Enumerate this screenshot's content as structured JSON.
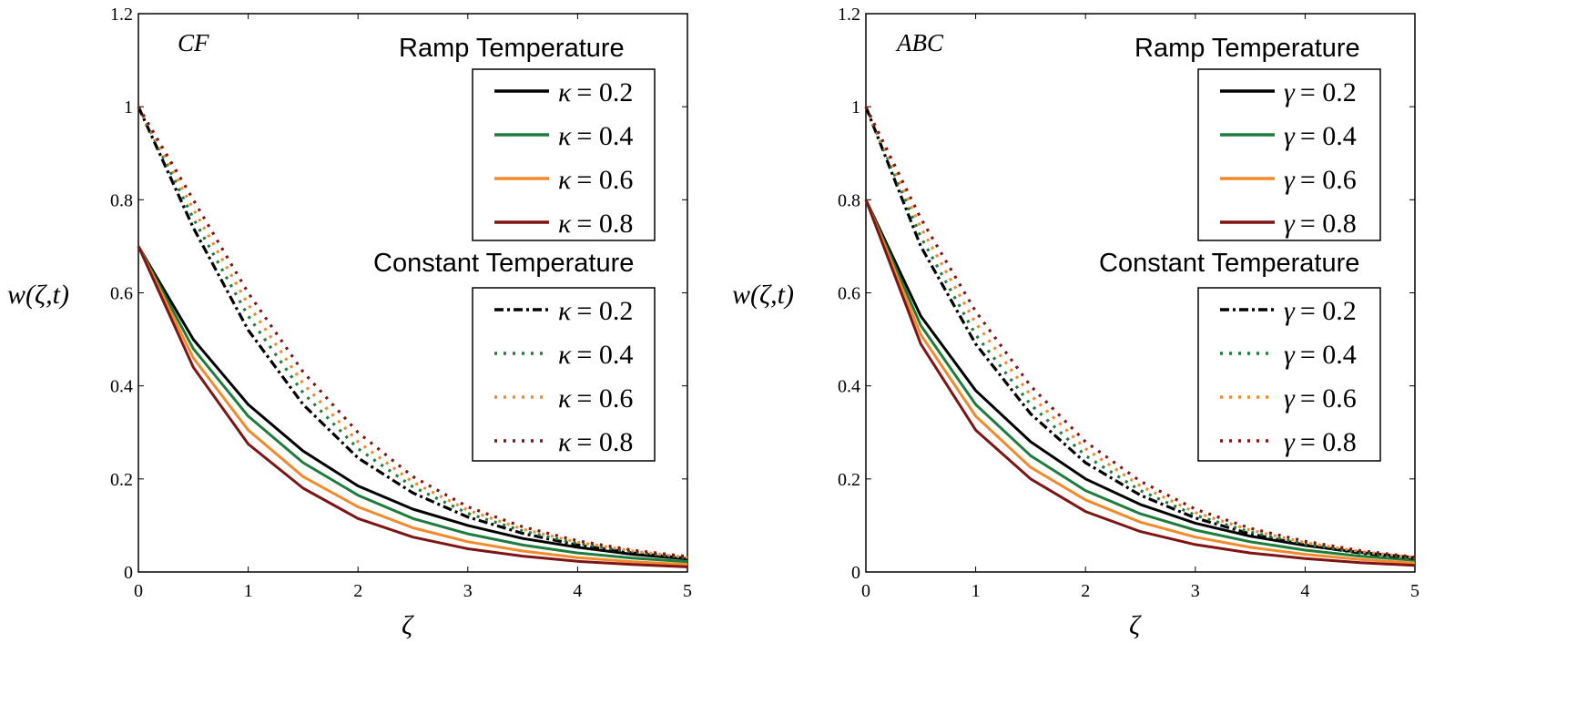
{
  "colors": {
    "0.2": "#000000",
    "0.4": "#1e7d3c",
    "0.6": "#f28a2c",
    "0.8": "#7e1414"
  },
  "chart_data": [
    {
      "type": "line",
      "panel_label": "CF",
      "xlabel": "ζ",
      "ylabel": "w(ζ,t)",
      "xlim": [
        0,
        5
      ],
      "ylim": [
        0,
        1.2
      ],
      "xticks": [
        "0",
        "1",
        "2",
        "3",
        "4",
        "5"
      ],
      "yticks": [
        "0",
        "0.2",
        "0.4",
        "0.6",
        "0.8",
        "1",
        "1.2"
      ],
      "x": [
        0,
        0.5,
        1,
        1.5,
        2,
        2.5,
        3,
        3.5,
        4,
        4.5,
        5
      ],
      "legend_groups": [
        {
          "title": "Ramp Temperature",
          "entries": [
            {
              "symbol": "κ",
              "value": "0.2",
              "text": "= 0.2",
              "style": "solid"
            },
            {
              "symbol": "κ",
              "value": "0.4",
              "text": "= 0.4",
              "style": "solid"
            },
            {
              "symbol": "κ",
              "value": "0.6",
              "text": "= 0.6",
              "style": "solid"
            },
            {
              "symbol": "κ",
              "value": "0.8",
              "text": "= 0.8",
              "style": "solid"
            }
          ]
        },
        {
          "title": "Constant Temperature",
          "entries": [
            {
              "symbol": "κ",
              "value": "0.2",
              "text": "= 0.2",
              "style": "dashdot"
            },
            {
              "symbol": "κ",
              "value": "0.4",
              "text": "= 0.4",
              "style": "dotted"
            },
            {
              "symbol": "κ",
              "value": "0.6",
              "text": "= 0.6",
              "style": "dotted"
            },
            {
              "symbol": "κ",
              "value": "0.8",
              "text": "= 0.8",
              "style": "dotted"
            }
          ]
        }
      ],
      "series": [
        {
          "group": "ramp",
          "param": "0.2",
          "style": "solid",
          "values": [
            0.7,
            0.5,
            0.36,
            0.26,
            0.185,
            0.135,
            0.1,
            0.072,
            0.053,
            0.038,
            0.028
          ]
        },
        {
          "group": "ramp",
          "param": "0.4",
          "style": "solid",
          "values": [
            0.7,
            0.48,
            0.335,
            0.235,
            0.165,
            0.115,
            0.082,
            0.058,
            0.041,
            0.03,
            0.022
          ]
        },
        {
          "group": "ramp",
          "param": "0.6",
          "style": "solid",
          "values": [
            0.7,
            0.46,
            0.305,
            0.205,
            0.14,
            0.095,
            0.065,
            0.045,
            0.031,
            0.022,
            0.016
          ]
        },
        {
          "group": "ramp",
          "param": "0.8",
          "style": "solid",
          "values": [
            0.7,
            0.44,
            0.275,
            0.18,
            0.115,
            0.075,
            0.05,
            0.034,
            0.023,
            0.016,
            0.011
          ]
        },
        {
          "group": "constant",
          "param": "0.2",
          "style": "dashdot",
          "values": [
            1.0,
            0.74,
            0.52,
            0.36,
            0.245,
            0.17,
            0.118,
            0.083,
            0.058,
            0.041,
            0.029
          ]
        },
        {
          "group": "constant",
          "param": "0.4",
          "style": "dotted",
          "values": [
            1.0,
            0.76,
            0.55,
            0.385,
            0.265,
            0.183,
            0.126,
            0.088,
            0.061,
            0.043,
            0.03
          ]
        },
        {
          "group": "constant",
          "param": "0.6",
          "style": "dotted",
          "values": [
            1.0,
            0.78,
            0.575,
            0.405,
            0.28,
            0.193,
            0.133,
            0.092,
            0.064,
            0.045,
            0.031
          ]
        },
        {
          "group": "constant",
          "param": "0.8",
          "style": "dotted",
          "values": [
            1.0,
            0.8,
            0.6,
            0.43,
            0.3,
            0.205,
            0.14,
            0.097,
            0.067,
            0.047,
            0.033
          ]
        }
      ]
    },
    {
      "type": "line",
      "panel_label": "ABC",
      "xlabel": "ζ",
      "ylabel": "w(ζ,t)",
      "xlim": [
        0,
        5
      ],
      "ylim": [
        0,
        1.2
      ],
      "xticks": [
        "0",
        "1",
        "2",
        "3",
        "4",
        "5"
      ],
      "yticks": [
        "0",
        "0.2",
        "0.4",
        "0.6",
        "0.8",
        "1",
        "1.2"
      ],
      "x": [
        0,
        0.5,
        1,
        1.5,
        2,
        2.5,
        3,
        3.5,
        4,
        4.5,
        5
      ],
      "legend_groups": [
        {
          "title": "Ramp Temperature",
          "entries": [
            {
              "symbol": "γ",
              "value": "0.2",
              "text": "= 0.2",
              "style": "solid"
            },
            {
              "symbol": "γ",
              "value": "0.4",
              "text": "= 0.4",
              "style": "solid"
            },
            {
              "symbol": "γ",
              "value": "0.6",
              "text": "= 0.6",
              "style": "solid"
            },
            {
              "symbol": "γ",
              "value": "0.8",
              "text": "= 0.8",
              "style": "solid"
            }
          ]
        },
        {
          "title": "Constant Temperature",
          "entries": [
            {
              "symbol": "γ",
              "value": "0.2",
              "text": "= 0.2",
              "style": "dashdot"
            },
            {
              "symbol": "γ",
              "value": "0.4",
              "text": "= 0.4",
              "style": "dotted"
            },
            {
              "symbol": "γ",
              "value": "0.6",
              "text": "= 0.6",
              "style": "dotted"
            },
            {
              "symbol": "γ",
              "value": "0.8",
              "text": "= 0.8",
              "style": "dotted"
            }
          ]
        }
      ],
      "series": [
        {
          "group": "ramp",
          "param": "0.2",
          "style": "solid",
          "values": [
            0.8,
            0.55,
            0.39,
            0.28,
            0.2,
            0.145,
            0.105,
            0.077,
            0.057,
            0.042,
            0.031
          ]
        },
        {
          "group": "ramp",
          "param": "0.4",
          "style": "solid",
          "values": [
            0.8,
            0.53,
            0.36,
            0.25,
            0.175,
            0.125,
            0.09,
            0.065,
            0.047,
            0.034,
            0.025
          ]
        },
        {
          "group": "ramp",
          "param": "0.6",
          "style": "solid",
          "values": [
            0.8,
            0.51,
            0.335,
            0.225,
            0.155,
            0.107,
            0.075,
            0.053,
            0.038,
            0.027,
            0.019
          ]
        },
        {
          "group": "ramp",
          "param": "0.8",
          "style": "solid",
          "values": [
            0.8,
            0.49,
            0.305,
            0.2,
            0.13,
            0.087,
            0.059,
            0.041,
            0.029,
            0.02,
            0.014
          ]
        },
        {
          "group": "constant",
          "param": "0.2",
          "style": "dashdot",
          "values": [
            1.0,
            0.7,
            0.49,
            0.34,
            0.235,
            0.165,
            0.116,
            0.082,
            0.058,
            0.041,
            0.029
          ]
        },
        {
          "group": "constant",
          "param": "0.4",
          "style": "dotted",
          "values": [
            1.0,
            0.72,
            0.51,
            0.36,
            0.25,
            0.175,
            0.122,
            0.086,
            0.06,
            0.042,
            0.03
          ]
        },
        {
          "group": "constant",
          "param": "0.6",
          "style": "dotted",
          "values": [
            1.0,
            0.74,
            0.535,
            0.38,
            0.265,
            0.185,
            0.128,
            0.09,
            0.063,
            0.044,
            0.031
          ]
        },
        {
          "group": "constant",
          "param": "0.8",
          "style": "dotted",
          "values": [
            1.0,
            0.76,
            0.56,
            0.4,
            0.28,
            0.195,
            0.135,
            0.094,
            0.066,
            0.046,
            0.032
          ]
        }
      ]
    }
  ]
}
